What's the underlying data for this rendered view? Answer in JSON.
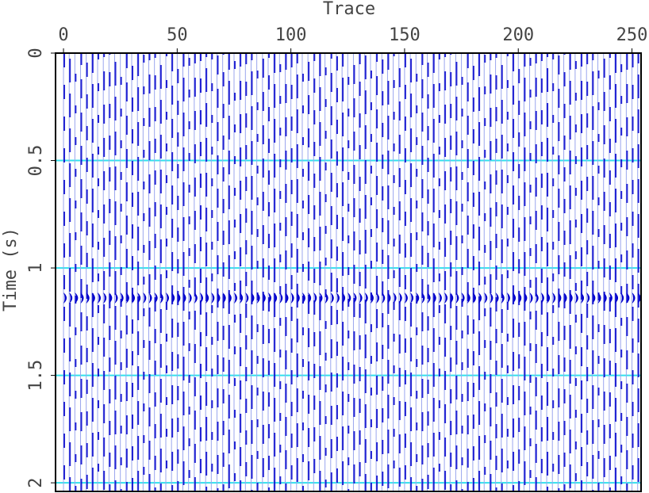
{
  "chart_data": {
    "type": "wiggle",
    "title": "Trace",
    "y_label": "Time (s)",
    "x": [
      0,
      2.5,
      5,
      7.5,
      10,
      12.5,
      15,
      17.5,
      20,
      22.5,
      25,
      27.5,
      30,
      32.5,
      35,
      37.5,
      40,
      42.5,
      45,
      47.5,
      50,
      52.5,
      55,
      57.5,
      60,
      62.5,
      65,
      67.5,
      70,
      72.5,
      75,
      77.5,
      80,
      82.5,
      85,
      87.5,
      90,
      92.5,
      95,
      97.5,
      100,
      102.5,
      105,
      107.5,
      110,
      112.5,
      115,
      117.5,
      120,
      122.5,
      125,
      127.5,
      130,
      132.5,
      135,
      137.5,
      140,
      142.5,
      145,
      147.5,
      150,
      152.5,
      155,
      157.5,
      160,
      162.5,
      165,
      167.5,
      170,
      172.5,
      175,
      177.5,
      180,
      182.5,
      185,
      187.5,
      190,
      192.5,
      195,
      197.5,
      200,
      202.5,
      205,
      207.5,
      210,
      212.5,
      215,
      217.5,
      220,
      222.5,
      225,
      227.5,
      230,
      232.5,
      235,
      237.5,
      240,
      242.5,
      245,
      247.5,
      250,
      252.5
    ],
    "event_time": 1.14,
    "xlim": [
      -3.5,
      254
    ],
    "xticks": [
      0,
      50,
      100,
      150,
      200,
      250
    ],
    "ylim": [
      0,
      2.04
    ],
    "yticks": [
      0,
      0.5,
      1,
      1.5,
      2
    ],
    "color": "#0000cc",
    "trace_color": "#9aa6ee",
    "grid": true,
    "grid_color": "#33e0ee"
  }
}
